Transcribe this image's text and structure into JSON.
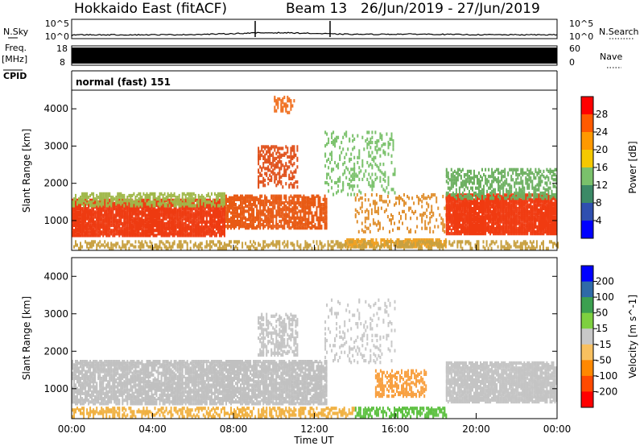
{
  "header": {
    "station": "Hokkaido East (fitACF)",
    "beam": "Beam 13",
    "date_range": "26/Jun/2019 - 27/Jun/2019"
  },
  "noise_panel": {
    "left_label": "N.Sky",
    "right_label": "N.Search",
    "left_ticks": [
      "10^5",
      "10^0"
    ],
    "right_ticks": [
      "10^5",
      "10^0"
    ]
  },
  "freq_panel": {
    "left_label_1": "Freq.",
    "left_label_2": "[MHz]",
    "left_ticks": [
      "18",
      "8"
    ],
    "right_label": "Nave",
    "right_ticks": [
      "60",
      "0"
    ]
  },
  "cpid_panel": {
    "left_label": "CPID",
    "mode_text": "normal (fast) 151"
  },
  "chart_data": [
    {
      "type": "heatmap",
      "name": "power",
      "ylabel": "Slant Range [km]",
      "yticks": [
        "1000",
        "2000",
        "3000",
        "4000"
      ],
      "ylim": [
        200,
        4500
      ],
      "xlim": [
        0,
        24
      ],
      "colorbar_label": "Power [dB]",
      "colorbar_ticks": [
        "28",
        "24",
        "20",
        "16",
        "12",
        "8",
        "4"
      ],
      "colorbar_colors": [
        "#ff0000",
        "#ff5a00",
        "#ff9900",
        "#f5c800",
        "#7ac16b",
        "#3c8a67",
        "#2f4fb0",
        "#0000ff"
      ],
      "regions": [
        {
          "t0": 0.0,
          "t1": 7.6,
          "r0": 600,
          "r1": 1550,
          "color": "#ee3a10",
          "density": 0.8
        },
        {
          "t0": 0.0,
          "t1": 7.6,
          "r0": 1400,
          "r1": 1750,
          "color": "#a0b84a",
          "density": 0.5
        },
        {
          "t0": 7.6,
          "t1": 12.6,
          "r0": 800,
          "r1": 1700,
          "color": "#e85a14",
          "density": 0.6
        },
        {
          "t0": 9.2,
          "t1": 11.2,
          "r0": 1900,
          "r1": 3000,
          "color": "#e0501a",
          "density": 0.35
        },
        {
          "t0": 10.0,
          "t1": 11.0,
          "r0": 3900,
          "r1": 4350,
          "color": "#f07020",
          "density": 0.35
        },
        {
          "t0": 12.5,
          "t1": 16.0,
          "r0": 1700,
          "r1": 3400,
          "color": "#7ac16b",
          "density": 0.15
        },
        {
          "t0": 13.5,
          "t1": 18.5,
          "r0": 300,
          "r1": 500,
          "color": "#f0a020",
          "density": 0.55
        },
        {
          "t0": 14.0,
          "t1": 18.5,
          "r0": 700,
          "r1": 1700,
          "color": "#e09030",
          "density": 0.18
        },
        {
          "t0": 18.5,
          "t1": 24.0,
          "r0": 650,
          "r1": 1700,
          "color": "#f03a10",
          "density": 0.85
        },
        {
          "t0": 18.5,
          "t1": 24.0,
          "r0": 1600,
          "r1": 2400,
          "color": "#6cb060",
          "density": 0.35
        },
        {
          "t0": 0.0,
          "t1": 24.0,
          "r0": 250,
          "r1": 450,
          "color": "#c8a040",
          "density": 0.35
        }
      ]
    },
    {
      "type": "heatmap",
      "name": "velocity",
      "ylabel": "Slant Range [km]",
      "yticks": [
        "1000",
        "2000",
        "3000",
        "4000"
      ],
      "ylim": [
        200,
        4500
      ],
      "xlim": [
        0,
        24
      ],
      "xticks": [
        "00:00",
        "04:00",
        "08:00",
        "12:00",
        "16:00",
        "20:00",
        "00:00"
      ],
      "xlabel": "Time UT",
      "colorbar_label": "Velocity [m s^-1]",
      "colorbar_ticks": [
        "200",
        "100",
        "50",
        "15",
        "-15",
        "-50",
        "-100",
        "-200"
      ],
      "colorbar_colors": [
        "#0000ff",
        "#2f6aa8",
        "#3ca050",
        "#7ed040",
        "#c8c8c8",
        "#f8c060",
        "#ff8800",
        "#ff4a00",
        "#ff0000"
      ],
      "regions": [
        {
          "t0": 0.0,
          "t1": 12.6,
          "r0": 600,
          "r1": 1750,
          "color": "#c0c0c0",
          "density": 0.7
        },
        {
          "t0": 9.2,
          "t1": 11.2,
          "r0": 1900,
          "r1": 3000,
          "color": "#c4c4c4",
          "density": 0.35
        },
        {
          "t0": 15.0,
          "t1": 17.5,
          "r0": 800,
          "r1": 1500,
          "color": "#f8a040",
          "density": 0.4
        },
        {
          "t0": 14.0,
          "t1": 18.5,
          "r0": 250,
          "r1": 500,
          "color": "#5cc040",
          "density": 0.5
        },
        {
          "t0": 0.0,
          "t1": 14.0,
          "r0": 250,
          "r1": 500,
          "color": "#f0b040",
          "density": 0.4
        },
        {
          "t0": 18.5,
          "t1": 24.0,
          "r0": 650,
          "r1": 1700,
          "color": "#c4c4c4",
          "density": 0.75
        },
        {
          "t0": 12.5,
          "t1": 16.0,
          "r0": 1700,
          "r1": 3400,
          "color": "#c8c8c8",
          "density": 0.12
        }
      ]
    }
  ]
}
